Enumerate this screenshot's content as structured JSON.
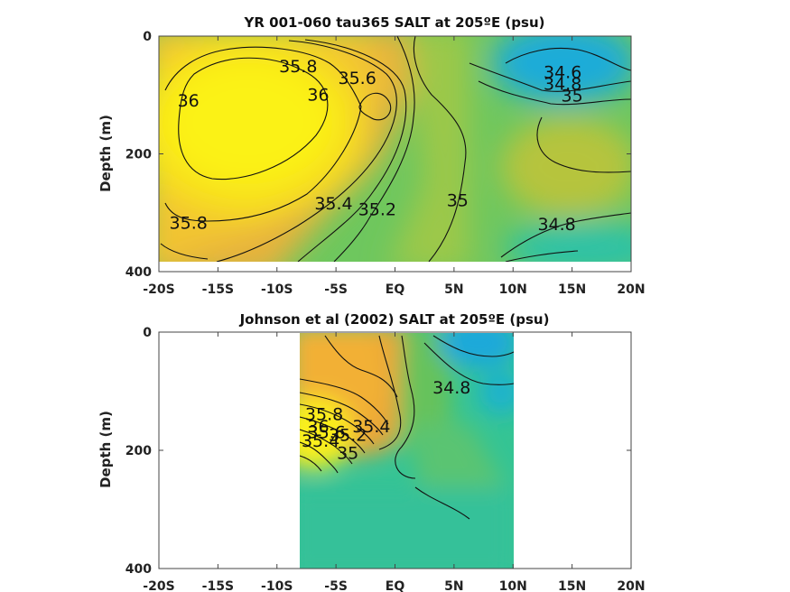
{
  "chart_data": [
    {
      "type": "contour",
      "title": "YR 001-060 tau365 SALT at 205ºE (psu)",
      "ylabel": "Depth (m)",
      "x_ticks": [
        "-20S",
        "-15S",
        "-10S",
        "-5S",
        "EQ",
        "5N",
        "10N",
        "15N",
        "20N"
      ],
      "y_ticks": [
        "0",
        "200",
        "400"
      ],
      "xlim": [
        -20,
        20
      ],
      "ylim": [
        0,
        400
      ],
      "y_reversed": true,
      "data_extent": {
        "x": [
          -20,
          20
        ],
        "y": [
          0,
          385
        ]
      },
      "contour_levels": [
        34.6,
        34.8,
        35.0,
        35.2,
        35.4,
        35.6,
        35.8,
        36.0
      ],
      "contour_labels": [
        {
          "text": "36",
          "x": -17.5,
          "y": 110
        },
        {
          "text": "35.8",
          "x": -8.2,
          "y": 52
        },
        {
          "text": "36",
          "x": -6.5,
          "y": 100
        },
        {
          "text": "35.6",
          "x": -3.2,
          "y": 72
        },
        {
          "text": "35.8",
          "x": -17.5,
          "y": 318
        },
        {
          "text": "35.4",
          "x": -5.2,
          "y": 285
        },
        {
          "text": "35.2",
          "x": -1.5,
          "y": 295
        },
        {
          "text": "35",
          "x": 5.3,
          "y": 280
        },
        {
          "text": "34.6",
          "x": 14.2,
          "y": 62
        },
        {
          "text": "34.8",
          "x": 14.2,
          "y": 82
        },
        {
          "text": "35",
          "x": 15.0,
          "y": 102
        },
        {
          "text": "34.8",
          "x": 13.7,
          "y": 320
        }
      ],
      "colormap": "parula",
      "salinity_range": [
        34.4,
        36.2
      ]
    },
    {
      "type": "contour",
      "title": "Johnson et al (2002) SALT at 205ºE (psu)",
      "ylabel": "Depth (m)",
      "x_ticks": [
        "-20S",
        "-15S",
        "-10S",
        "-5S",
        "EQ",
        "5N",
        "10N",
        "15N",
        "20N"
      ],
      "y_ticks": [
        "0",
        "200",
        "400"
      ],
      "xlim": [
        -20,
        20
      ],
      "ylim": [
        0,
        400
      ],
      "y_reversed": true,
      "data_extent": {
        "x": [
          -8,
          10
        ],
        "y": [
          0,
          400
        ]
      },
      "contour_levels": [
        34.8,
        35.0,
        35.2,
        35.4,
        35.6,
        35.8,
        36.0
      ],
      "contour_labels": [
        {
          "text": "34.8",
          "x": 4.8,
          "y": 95
        },
        {
          "text": "35.4",
          "x": -2.0,
          "y": 160
        },
        {
          "text": "35.2",
          "x": -4.0,
          "y": 175
        },
        {
          "text": "35.8",
          "x": -6.0,
          "y": 140
        },
        {
          "text": "36",
          "x": -6.5,
          "y": 160
        },
        {
          "text": "35.6",
          "x": -5.8,
          "y": 170
        },
        {
          "text": "35.4",
          "x": -6.3,
          "y": 185
        },
        {
          "text": "35",
          "x": -4.0,
          "y": 205
        }
      ],
      "colormap": "parula",
      "salinity_range": [
        34.4,
        36.2
      ]
    }
  ]
}
